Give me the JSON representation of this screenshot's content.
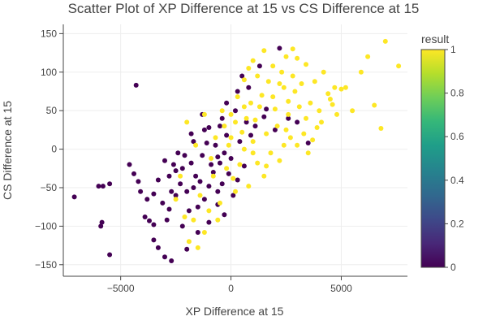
{
  "chart_data": {
    "type": "scatter",
    "title": "Scatter Plot of XP Difference at 15 vs CS Difference at 15",
    "xlabel": "XP Difference at 15",
    "ylabel": "CS Difference at 15",
    "xlim": [
      -7600,
      8000
    ],
    "ylim": [
      -165,
      162
    ],
    "xticks": [
      -5000,
      0,
      5000
    ],
    "xtick_labels": [
      "−5000",
      "0",
      "5000"
    ],
    "yticks": [
      -150,
      -100,
      -50,
      0,
      50,
      100,
      150
    ],
    "ytick_labels": [
      "−150",
      "−100",
      "−50",
      "0",
      "50",
      "100",
      "150"
    ],
    "grid": true,
    "colorbar": {
      "title": "result",
      "min": 0,
      "max": 1,
      "ticks": [
        0,
        0.2,
        0.4,
        0.6,
        0.8,
        1
      ],
      "tick_labels": [
        "0",
        "0.2",
        "0.4",
        "0.6",
        "0.8",
        "1"
      ],
      "colorscale": [
        "#440154",
        "#482878",
        "#3e4989",
        "#31688e",
        "#26828e",
        "#1f9e89",
        "#35b779",
        "#6ece58",
        "#b5de2b",
        "#fde725"
      ]
    },
    "colors": {
      "result_0": "#440154",
      "result_1": "#fde725"
    },
    "series": [
      {
        "values_result": 0,
        "points": [
          [
            -7100,
            -62
          ],
          [
            -6000,
            -48
          ],
          [
            -5800,
            -48
          ],
          [
            -5500,
            -45
          ],
          [
            -5900,
            -100
          ],
          [
            -5850,
            -95
          ],
          [
            -5500,
            -137
          ],
          [
            -4300,
            83
          ],
          [
            -4600,
            -20
          ],
          [
            -4400,
            -32
          ],
          [
            -4200,
            -42
          ],
          [
            -4100,
            -55
          ],
          [
            -3800,
            -65
          ],
          [
            -3900,
            -88
          ],
          [
            -3700,
            -93
          ],
          [
            -3500,
            -98
          ],
          [
            -3500,
            -118
          ],
          [
            -3300,
            -128
          ],
          [
            -3100,
            -70
          ],
          [
            -3000,
            -140
          ],
          [
            -2700,
            -145
          ],
          [
            -2800,
            -35
          ],
          [
            -2600,
            -20
          ],
          [
            -2400,
            -5
          ],
          [
            -2200,
            -100
          ],
          [
            -2000,
            -130
          ],
          [
            -1800,
            20
          ],
          [
            -1300,
            45
          ],
          [
            -1000,
            28
          ],
          [
            -600,
            -10
          ],
          [
            -200,
            60
          ],
          [
            300,
            75
          ],
          [
            800,
            80
          ],
          [
            500,
            95
          ],
          [
            1300,
            108
          ],
          [
            2200,
            131
          ],
          [
            1600,
            52
          ],
          [
            2600,
            40
          ],
          [
            3000,
            35
          ],
          [
            3500,
            8
          ],
          [
            200,
            50
          ],
          [
            -500,
            30
          ],
          [
            -800,
            -30
          ],
          [
            -1500,
            -75
          ],
          [
            -2500,
            -60
          ],
          [
            -1900,
            -80
          ],
          [
            -2700,
            -55
          ],
          [
            -3300,
            -40
          ],
          [
            -2200,
            -25
          ],
          [
            -1700,
            -50
          ],
          [
            -1200,
            -65
          ],
          [
            -400,
            -45
          ],
          [
            100,
            -60
          ],
          [
            -1000,
            -95
          ],
          [
            -2300,
            -45
          ],
          [
            -1600,
            -35
          ],
          [
            -900,
            -20
          ],
          [
            -300,
            -5
          ],
          [
            400,
            10
          ],
          [
            900,
            18
          ],
          [
            1100,
            30
          ],
          [
            -200,
            18
          ],
          [
            -700,
            5
          ],
          [
            -1300,
            -8
          ],
          [
            -1800,
            -18
          ],
          [
            -2500,
            -28
          ],
          [
            -3000,
            -15
          ],
          [
            -1400,
            -42
          ],
          [
            -600,
            -55
          ],
          [
            -100,
            -32
          ],
          [
            600,
            -22
          ],
          [
            -2000,
            -55
          ],
          [
            -1100,
            8
          ],
          [
            -500,
            -18
          ],
          [
            0,
            -12
          ],
          [
            -2800,
            -78
          ],
          [
            -1700,
            10
          ],
          [
            -1000,
            -48
          ],
          [
            1500,
            42
          ],
          [
            2000,
            25
          ],
          [
            700,
            35
          ],
          [
            -400,
            40
          ],
          [
            -1200,
            25
          ],
          [
            -2100,
            -8
          ],
          [
            -3500,
            -58
          ],
          [
            -2900,
            -92
          ],
          [
            -1500,
            -108
          ],
          [
            -600,
            -72
          ],
          [
            -300,
            -85
          ],
          [
            300,
            -40
          ]
        ]
      },
      {
        "values_result": 1,
        "points": [
          [
            7000,
            140
          ],
          [
            7600,
            108
          ],
          [
            6200,
            120
          ],
          [
            5900,
            100
          ],
          [
            6500,
            57
          ],
          [
            6800,
            27
          ],
          [
            5200,
            80
          ],
          [
            5000,
            78
          ],
          [
            4700,
            80
          ],
          [
            5500,
            50
          ],
          [
            4500,
            65
          ],
          [
            4800,
            45
          ],
          [
            3800,
            88
          ],
          [
            4200,
            100
          ],
          [
            3400,
            110
          ],
          [
            3000,
            118
          ],
          [
            2800,
            130
          ],
          [
            2500,
            120
          ],
          [
            1500,
            128
          ],
          [
            1000,
            115
          ],
          [
            600,
            90
          ],
          [
            -400,
            50
          ],
          [
            -1200,
            45
          ],
          [
            -2000,
            35
          ],
          [
            -2500,
            -65
          ],
          [
            -2100,
            -88
          ],
          [
            -1900,
            -120
          ],
          [
            -1500,
            -128
          ],
          [
            -1200,
            -108
          ],
          [
            -600,
            -92
          ],
          [
            -1400,
            -60
          ],
          [
            -800,
            -35
          ],
          [
            -200,
            -25
          ],
          [
            400,
            -20
          ],
          [
            1000,
            10
          ],
          [
            1600,
            20
          ],
          [
            2100,
            30
          ],
          [
            2600,
            45
          ],
          [
            3100,
            55
          ],
          [
            3600,
            60
          ],
          [
            4100,
            35
          ],
          [
            3300,
            20
          ],
          [
            2400,
            5
          ],
          [
            1800,
            -5
          ],
          [
            1200,
            -18
          ],
          [
            600,
            0
          ],
          [
            0,
            15
          ],
          [
            -300,
            30
          ],
          [
            700,
            40
          ],
          [
            1300,
            55
          ],
          [
            1900,
            68
          ],
          [
            2400,
            80
          ],
          [
            2900,
            75
          ],
          [
            3400,
            40
          ],
          [
            3900,
            28
          ],
          [
            2700,
            15
          ],
          [
            2200,
            -15
          ],
          [
            1500,
            -35
          ],
          [
            800,
            -48
          ],
          [
            200,
            -55
          ],
          [
            -500,
            -70
          ],
          [
            -1000,
            -80
          ],
          [
            900,
            60
          ],
          [
            1700,
            88
          ],
          [
            2300,
            100
          ],
          [
            200,
            35
          ],
          [
            -100,
            5
          ],
          [
            500,
            22
          ],
          [
            1100,
            38
          ],
          [
            2800,
            95
          ],
          [
            3200,
            85
          ],
          [
            4400,
            72
          ],
          [
            1400,
            70
          ],
          [
            2000,
            52
          ],
          [
            2600,
            62
          ],
          [
            3700,
            12
          ],
          [
            4600,
            58
          ],
          [
            -700,
            15
          ],
          [
            -1600,
            5
          ],
          [
            -2300,
            -35
          ],
          [
            -1700,
            -92
          ],
          [
            300,
            68
          ],
          [
            1200,
            95
          ],
          [
            1900,
            108
          ],
          [
            2500,
            25
          ],
          [
            3000,
            5
          ],
          [
            3500,
            -5
          ],
          [
            4000,
            50
          ],
          [
            2200,
            85
          ],
          [
            1000,
            -5
          ],
          [
            0,
            45
          ],
          [
            600,
            55
          ],
          [
            -900,
            -12
          ],
          [
            100,
            -38
          ],
          [
            800,
            105
          ],
          [
            1600,
            -22
          ]
        ]
      }
    ]
  }
}
